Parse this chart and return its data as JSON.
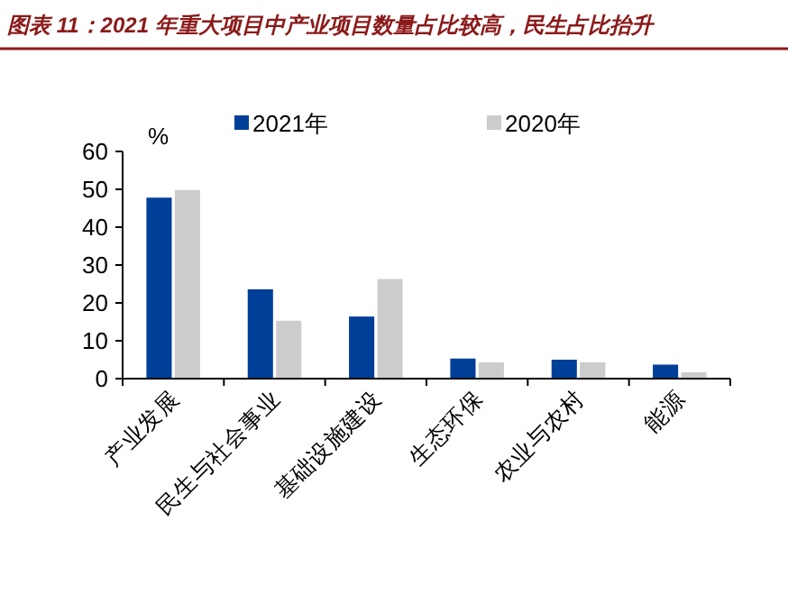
{
  "chart_data": {
    "type": "bar",
    "title": "图表 11：2021 年重大项目中产业项目数量占比较高，民生占比抬升",
    "ylabel": "%",
    "categories": [
      "产业发展",
      "民生与社会事业",
      "基础设施建设",
      "生态环保",
      "农业与农村",
      "能源"
    ],
    "series": [
      {
        "name": "2021年",
        "color": "#003f98",
        "values": [
          47.8,
          23.6,
          16.4,
          5.3,
          5.0,
          3.7
        ]
      },
      {
        "name": "2020年",
        "color": "#cccccc",
        "values": [
          49.8,
          15.3,
          26.3,
          4.3,
          4.3,
          1.7
        ]
      }
    ],
    "ylim": [
      0,
      60
    ],
    "yticks": [
      0,
      10,
      20,
      30,
      40,
      50,
      60
    ],
    "grid": false,
    "legend": "top"
  }
}
